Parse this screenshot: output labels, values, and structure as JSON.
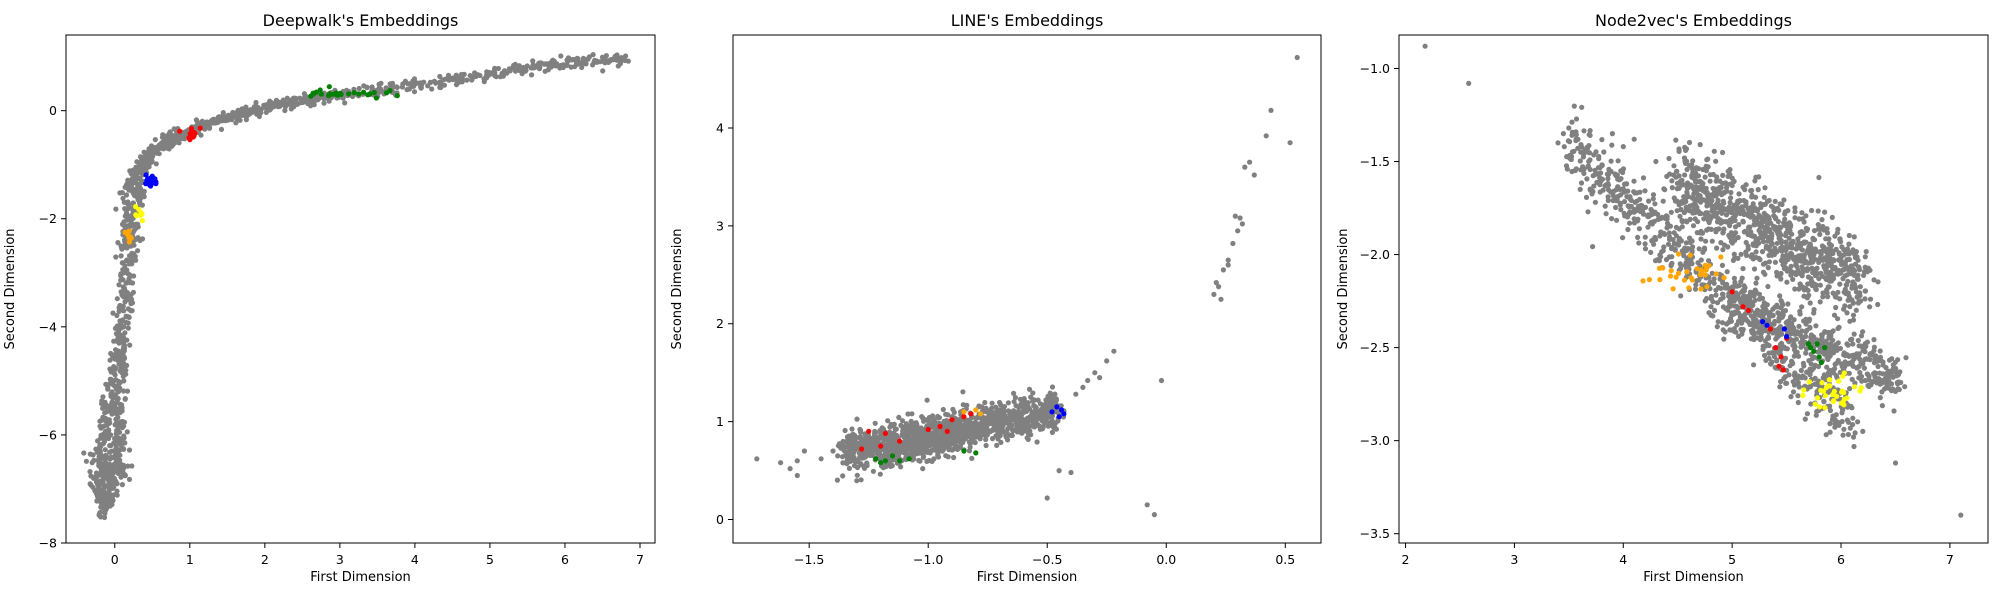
{
  "chart_data": [
    {
      "type": "scatter",
      "title": "Deepwalk's Embeddings",
      "xlabel": "First Dimension",
      "ylabel": "Second Dimension",
      "xlim": [
        -0.65,
        7.2
      ],
      "ylim": [
        -8.0,
        1.4
      ],
      "xticks": [
        0,
        1,
        2,
        3,
        4,
        5,
        6,
        7
      ],
      "yticks": [
        -8,
        -6,
        -4,
        -2,
        0
      ],
      "grid": false,
      "series": [
        {
          "color": "#808080",
          "kind": "curve",
          "points": [
            [
              6.8,
              0.95
            ],
            [
              6.0,
              0.9
            ],
            [
              5.0,
              0.72
            ],
            [
              4.0,
              0.52
            ],
            [
              3.0,
              0.3
            ],
            [
              2.2,
              0.12
            ],
            [
              1.5,
              -0.12
            ],
            [
              1.0,
              -0.38
            ],
            [
              0.75,
              -0.55
            ],
            [
              0.55,
              -0.72
            ],
            [
              0.3,
              -1.1
            ],
            [
              0.2,
              -1.6
            ],
            [
              0.15,
              -2.4
            ],
            [
              0.1,
              -3.5
            ],
            [
              0.05,
              -4.5
            ],
            [
              -0.05,
              -5.3
            ],
            [
              -0.15,
              -6.0
            ],
            [
              -0.22,
              -6.8
            ],
            [
              -0.18,
              -7.3
            ]
          ],
          "count": 750,
          "spread": 0.05
        },
        {
          "color": "#808080",
          "kind": "curve",
          "points": [
            [
              6.8,
              0.95
            ],
            [
              5.8,
              0.85
            ],
            [
              4.8,
              0.6
            ],
            [
              3.8,
              0.4
            ],
            [
              2.8,
              0.22
            ],
            [
              2.0,
              0.05
            ],
            [
              1.3,
              -0.2
            ],
            [
              0.8,
              -0.48
            ],
            [
              0.45,
              -0.8
            ],
            [
              0.35,
              -1.3
            ],
            [
              0.28,
              -2.0
            ],
            [
              0.2,
              -2.9
            ],
            [
              0.12,
              -4.0
            ],
            [
              0.08,
              -5.0
            ],
            [
              0.05,
              -5.8
            ],
            [
              0.02,
              -6.5
            ],
            [
              -0.05,
              -7.0
            ],
            [
              -0.15,
              -7.5
            ]
          ],
          "count": 650,
          "spread": 0.05
        },
        {
          "color": "#808080",
          "kind": "curve",
          "points": [
            [
              -0.25,
              -6.3
            ],
            [
              -0.05,
              -6.8
            ],
            [
              0.1,
              -6.6
            ],
            [
              0.05,
              -6.0
            ]
          ],
          "count": 80,
          "spread": 0.08
        },
        {
          "color": "#008000",
          "kind": "cluster",
          "cx": 3.0,
          "cy": 0.32,
          "sx": 0.28,
          "sy": 0.05,
          "count": 28
        },
        {
          "color": "#ff0000",
          "kind": "cluster",
          "cx": 1.05,
          "cy": -0.4,
          "sx": 0.08,
          "sy": 0.05,
          "count": 12
        },
        {
          "color": "#0000ff",
          "kind": "cluster",
          "cx": 0.47,
          "cy": -1.3,
          "sx": 0.05,
          "sy": 0.06,
          "count": 16
        },
        {
          "color": "#ffff00",
          "kind": "cluster",
          "cx": 0.32,
          "cy": -1.95,
          "sx": 0.03,
          "sy": 0.08,
          "count": 8
        },
        {
          "color": "#ffa500",
          "kind": "cluster",
          "cx": 0.18,
          "cy": -2.3,
          "sx": 0.03,
          "sy": 0.1,
          "count": 8
        }
      ]
    },
    {
      "type": "scatter",
      "title": "LINE's Embeddings",
      "xlabel": "First Dimension",
      "ylabel": "Second Dimension",
      "xlim": [
        -1.82,
        0.65
      ],
      "ylim": [
        -0.24,
        4.95
      ],
      "xticks": [
        -1.5,
        -1.0,
        -0.5,
        0.0,
        0.5
      ],
      "xtick_labels": [
        "−1.5",
        "−1.0",
        "−0.5",
        "0.0",
        "0.5"
      ],
      "yticks": [
        0,
        1,
        2,
        3,
        4
      ],
      "grid": false,
      "series": [
        {
          "color": "#808080",
          "kind": "band",
          "x0": -1.35,
          "y0": 0.68,
          "x1": -0.45,
          "y1": 1.12,
          "width": 0.1,
          "count": 1100
        },
        {
          "color": "#808080",
          "kind": "band",
          "x0": -1.2,
          "y0": 0.62,
          "x1": -0.8,
          "y1": 0.9,
          "width": 0.06,
          "count": 250
        },
        {
          "color": "#808080",
          "kind": "points",
          "xy": [
            [
              -1.72,
              0.62
            ],
            [
              -1.62,
              0.58
            ],
            [
              -1.58,
              0.52
            ],
            [
              -1.55,
              0.6
            ],
            [
              -1.55,
              0.45
            ],
            [
              -1.52,
              0.7
            ],
            [
              -1.45,
              0.62
            ],
            [
              -1.4,
              0.7
            ],
            [
              -1.38,
              0.65
            ],
            [
              -0.38,
              1.28
            ],
            [
              -0.35,
              1.35
            ],
            [
              -0.33,
              1.42
            ],
            [
              -0.3,
              1.5
            ],
            [
              -0.28,
              1.45
            ],
            [
              -0.25,
              1.62
            ],
            [
              -0.22,
              1.72
            ],
            [
              -0.45,
              0.5
            ],
            [
              -0.4,
              0.48
            ],
            [
              -0.5,
              0.22
            ],
            [
              -0.02,
              1.42
            ],
            [
              -0.08,
              0.15
            ],
            [
              -0.05,
              0.05
            ],
            [
              0.2,
              2.3
            ],
            [
              0.21,
              2.42
            ],
            [
              0.22,
              2.38
            ],
            [
              0.23,
              2.25
            ],
            [
              0.24,
              2.55
            ],
            [
              0.26,
              2.65
            ],
            [
              0.28,
              2.82
            ],
            [
              0.29,
              3.1
            ],
            [
              0.31,
              3.08
            ],
            [
              0.32,
              3.02
            ],
            [
              0.33,
              3.6
            ],
            [
              0.35,
              3.65
            ],
            [
              0.37,
              3.52
            ],
            [
              0.42,
              3.92
            ],
            [
              0.44,
              4.18
            ],
            [
              0.52,
              3.85
            ],
            [
              0.55,
              4.72
            ],
            [
              0.26,
              2.6
            ],
            [
              0.3,
              2.95
            ]
          ]
        },
        {
          "color": "#ff0000",
          "kind": "points",
          "xy": [
            [
              -1.28,
              0.72
            ],
            [
              -1.25,
              0.9
            ],
            [
              -1.18,
              0.88
            ],
            [
              -1.12,
              0.8
            ],
            [
              -1.0,
              0.92
            ],
            [
              -0.95,
              0.95
            ],
            [
              -0.9,
              1.02
            ],
            [
              -0.85,
              1.05
            ],
            [
              -0.82,
              1.08
            ],
            [
              -1.2,
              0.75
            ],
            [
              -0.92,
              0.9
            ]
          ]
        },
        {
          "color": "#008000",
          "kind": "points",
          "xy": [
            [
              -1.22,
              0.62
            ],
            [
              -1.2,
              0.58
            ],
            [
              -1.18,
              0.6
            ],
            [
              -1.15,
              0.65
            ],
            [
              -1.12,
              0.6
            ],
            [
              -1.08,
              0.62
            ],
            [
              -0.85,
              0.7
            ],
            [
              -0.8,
              0.68
            ]
          ]
        },
        {
          "color": "#0000ff",
          "kind": "points",
          "xy": [
            [
              -0.48,
              1.1
            ],
            [
              -0.46,
              1.15
            ],
            [
              -0.44,
              1.12
            ],
            [
              -0.45,
              1.05
            ],
            [
              -0.43,
              1.08
            ]
          ]
        },
        {
          "color": "#ffa500",
          "kind": "points",
          "xy": [
            [
              -0.85,
              1.1
            ],
            [
              -0.8,
              1.12
            ],
            [
              -0.78,
              1.08
            ]
          ]
        }
      ]
    },
    {
      "type": "scatter",
      "title": "Node2vec's Embeddings",
      "xlabel": "First Dimension",
      "ylabel": "Second Dimension",
      "xlim": [
        1.94,
        7.35
      ],
      "ylim": [
        -3.55,
        -0.82
      ],
      "xticks": [
        2,
        3,
        4,
        5,
        6,
        7
      ],
      "yticks": [
        -3.5,
        -3.0,
        -2.5,
        -2.0,
        -1.5,
        -1.0
      ],
      "ytick_labels": [
        "−3.5",
        "−3.0",
        "−2.5",
        "−2.0",
        "−1.5",
        "−1.0"
      ],
      "grid": false,
      "series": [
        {
          "color": "#808080",
          "kind": "band",
          "x0": 3.5,
          "y0": -1.38,
          "x1": 6.1,
          "y1": -2.9,
          "width": 0.09,
          "count": 700
        },
        {
          "color": "#808080",
          "kind": "band",
          "x0": 4.5,
          "y0": -1.62,
          "x1": 6.2,
          "y1": -2.15,
          "width": 0.11,
          "count": 900
        },
        {
          "color": "#808080",
          "kind": "band",
          "x0": 5.0,
          "y0": -2.25,
          "x1": 6.55,
          "y1": -2.68,
          "width": 0.07,
          "count": 450
        },
        {
          "color": "#808080",
          "kind": "points",
          "xy": [
            [
              2.18,
              -0.88
            ],
            [
              2.58,
              -1.08
            ],
            [
              7.1,
              -3.4
            ],
            [
              6.5,
              -3.12
            ],
            [
              6.2,
              -2.95
            ],
            [
              3.4,
              -1.4
            ],
            [
              3.45,
              -1.35
            ],
            [
              3.5,
              -1.32
            ],
            [
              3.9,
              -1.35
            ],
            [
              4.1,
              -1.38
            ],
            [
              4.0,
              -1.42
            ],
            [
              4.3,
              -1.5
            ],
            [
              4.4,
              -1.58
            ]
          ]
        },
        {
          "color": "#ffa500",
          "kind": "cluster",
          "cx": 4.55,
          "cy": -2.1,
          "sx": 0.17,
          "sy": 0.04,
          "count": 30
        },
        {
          "color": "#ff0000",
          "kind": "points",
          "xy": [
            [
              5.0,
              -2.2
            ],
            [
              5.1,
              -2.28
            ],
            [
              5.15,
              -2.3
            ],
            [
              5.35,
              -2.4
            ],
            [
              5.4,
              -2.5
            ],
            [
              5.45,
              -2.55
            ],
            [
              5.43,
              -2.6
            ],
            [
              5.47,
              -2.62
            ],
            [
              5.5,
              -2.45
            ]
          ]
        },
        {
          "color": "#0000ff",
          "kind": "points",
          "xy": [
            [
              5.28,
              -2.36
            ],
            [
              5.32,
              -2.38
            ],
            [
              5.48,
              -2.4
            ],
            [
              5.5,
              -2.44
            ]
          ]
        },
        {
          "color": "#008000",
          "kind": "points",
          "xy": [
            [
              5.7,
              -2.48
            ],
            [
              5.72,
              -2.5
            ],
            [
              5.75,
              -2.52
            ],
            [
              5.78,
              -2.48
            ],
            [
              5.8,
              -2.55
            ],
            [
              5.82,
              -2.58
            ],
            [
              5.85,
              -2.5
            ]
          ]
        },
        {
          "color": "#ffff00",
          "kind": "cluster",
          "cx": 5.92,
          "cy": -2.74,
          "sx": 0.12,
          "sy": 0.05,
          "count": 35
        }
      ]
    }
  ]
}
